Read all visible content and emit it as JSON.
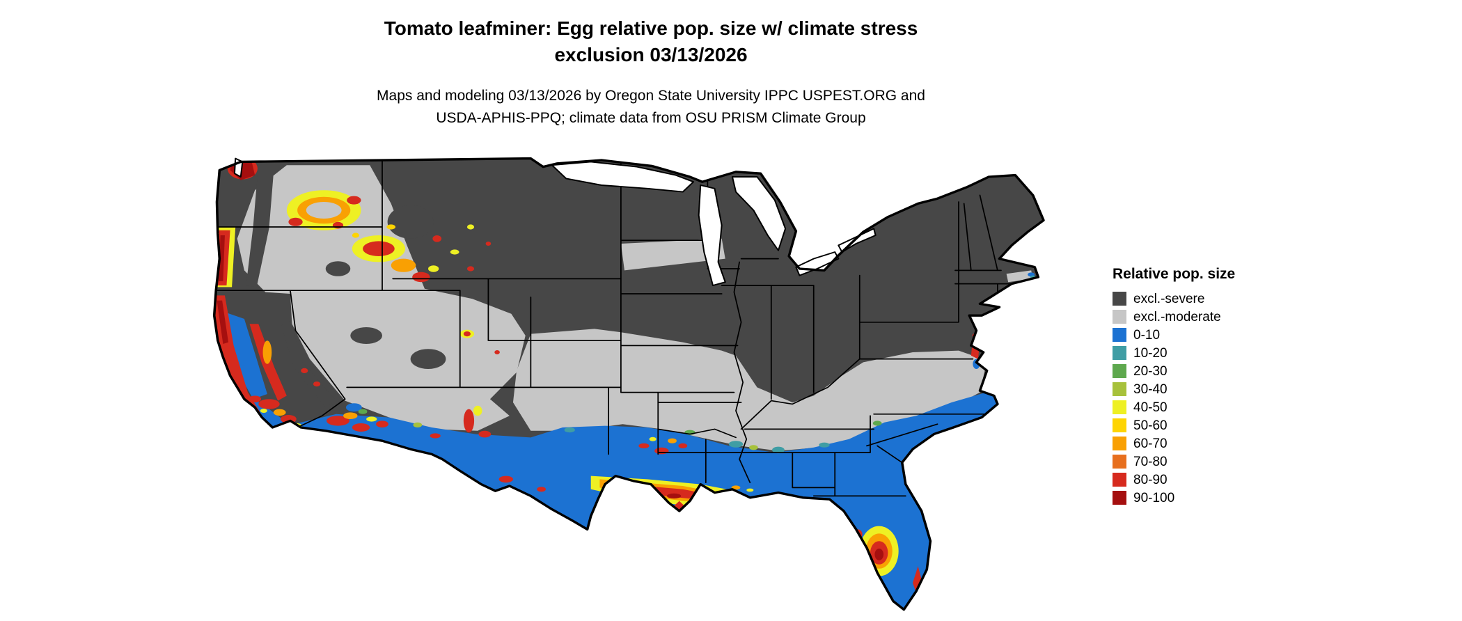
{
  "title": {
    "line1": "Tomato leafminer: Egg relative pop. size w/ climate stress",
    "line2": "exclusion 03/13/2026"
  },
  "subtitle": {
    "line1": "Maps and modeling 03/13/2026 by Oregon State University IPPC USPEST.ORG and",
    "line2": "USDA-APHIS-PPQ; climate data from OSU PRISM Climate Group"
  },
  "legend": {
    "title": "Relative pop. size",
    "items": [
      {
        "key": "sev",
        "label": "excl.-severe",
        "color": "#474747"
      },
      {
        "key": "mod",
        "label": "excl.-moderate",
        "color": "#c6c6c6"
      },
      {
        "key": "b0",
        "label": "0-10",
        "color": "#1c72d2"
      },
      {
        "key": "b10",
        "label": "10-20",
        "color": "#3f9da4"
      },
      {
        "key": "b20",
        "label": "20-30",
        "color": "#5ea84e"
      },
      {
        "key": "b30",
        "label": "30-40",
        "color": "#a7c13b"
      },
      {
        "key": "b40",
        "label": "40-50",
        "color": "#eef024"
      },
      {
        "key": "b50",
        "label": "50-60",
        "color": "#fed402"
      },
      {
        "key": "b60",
        "label": "60-70",
        "color": "#f9a003"
      },
      {
        "key": "b70",
        "label": "70-80",
        "color": "#e76f1e"
      },
      {
        "key": "b80",
        "label": "80-90",
        "color": "#d62a1e"
      },
      {
        "key": "b90",
        "label": "90-100",
        "color": "#a50f0f"
      }
    ]
  }
}
